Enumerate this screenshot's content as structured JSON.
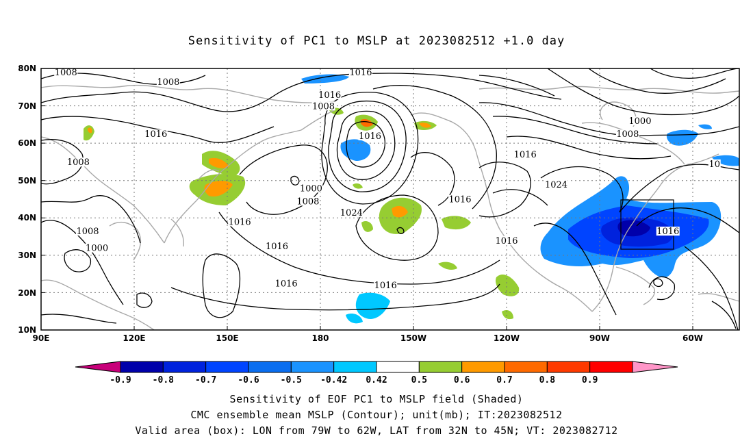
{
  "title": "Sensitivity of PC1 to MSLP at 2023082512 +1.0 day",
  "lat_labels": [
    "80N",
    "70N",
    "60N",
    "50N",
    "40N",
    "30N",
    "20N",
    "10N"
  ],
  "lon_labels": [
    "90E",
    "120E",
    "150E",
    "180",
    "150W",
    "120W",
    "90W",
    "60W"
  ],
  "contour_labels": [
    {
      "text": "1008",
      "lon": 98,
      "lat": 78.5
    },
    {
      "text": "1008",
      "lon": 131,
      "lat": 76
    },
    {
      "text": "1016",
      "lon": 193,
      "lat": 78.5
    },
    {
      "text": "1016",
      "lon": 183,
      "lat": 72.5
    },
    {
      "text": "1008",
      "lon": 181,
      "lat": 69.5
    },
    {
      "text": "1016",
      "lon": 127,
      "lat": 62
    },
    {
      "text": "1008",
      "lon": 102,
      "lat": 54.5
    },
    {
      "text": "1016",
      "lon": 196,
      "lat": 61.5
    },
    {
      "text": "1016",
      "lon": 246,
      "lat": 56.5
    },
    {
      "text": "1008",
      "lon": 279,
      "lat": 62
    },
    {
      "text": "1000",
      "lon": 283,
      "lat": 65.5
    },
    {
      "text": "1000",
      "lon": 177,
      "lat": 47.5
    },
    {
      "text": "1008",
      "lon": 176,
      "lat": 44
    },
    {
      "text": "1024",
      "lon": 190,
      "lat": 41
    },
    {
      "text": "1016",
      "lon": 225,
      "lat": 44.5
    },
    {
      "text": "1024",
      "lon": 256,
      "lat": 48.5
    },
    {
      "text": "1016",
      "lon": 154,
      "lat": 38.5
    },
    {
      "text": "1016",
      "lon": 166,
      "lat": 32
    },
    {
      "text": "1016",
      "lon": 240,
      "lat": 33.5
    },
    {
      "text": "1016",
      "lon": 292,
      "lat": 36
    },
    {
      "text": "1008",
      "lon": 105,
      "lat": 36
    },
    {
      "text": "1000",
      "lon": 108,
      "lat": 31.5
    },
    {
      "text": "1016",
      "lon": 169,
      "lat": 22
    },
    {
      "text": "1016",
      "lon": 201,
      "lat": 21.5
    },
    {
      "text": "10",
      "lon": 307,
      "lat": 54
    }
  ],
  "colorbar": {
    "colors": [
      "#c8007a",
      "#0000aa",
      "#0022dd",
      "#0044ff",
      "#0a6ef0",
      "#1a93ff",
      "#00c8ff",
      "#ffffff",
      "#96cd32",
      "#ff9a00",
      "#ff6a00",
      "#ff3a00",
      "#ff0000",
      "#ff96c8"
    ],
    "labels": [
      "-0.9",
      "-0.8",
      "-0.7",
      "-0.6",
      "-0.5",
      "-0.42",
      "0.42",
      "0.5",
      "0.6",
      "0.7",
      "0.8",
      "0.9"
    ]
  },
  "valid_box": {
    "lon_from": -79,
    "lon_to": -62,
    "lat_from": 32,
    "lat_to": 45
  },
  "captions": [
    "Sensitivity of EOF PC1 to MSLP field (Shaded)",
    "CMC ensemble mean MSLP (Contour); unit(mb); IT:2023082512",
    "Valid area (box): LON from 79W to 62W, LAT from 32N to 45N; VT: 2023082712"
  ]
}
